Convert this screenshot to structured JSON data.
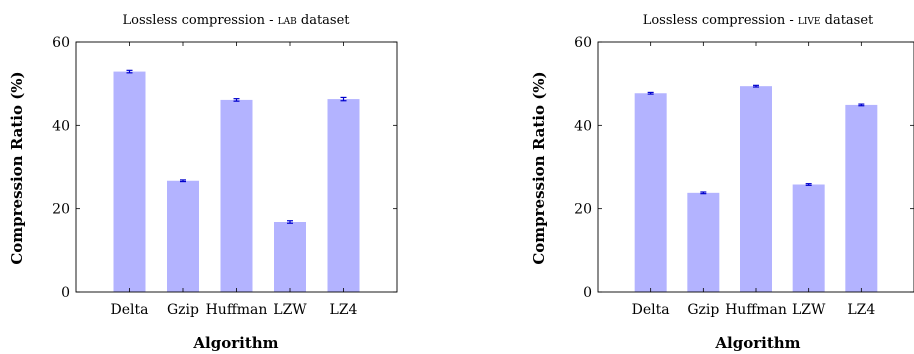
{
  "charts": [
    {
      "id": "lab",
      "title": {
        "prefix": "Lossless compression - ",
        "sc": "lab",
        "suffix": " dataset"
      },
      "xlabel": "Algorithm",
      "ylabel": "Compression Ratio (%)"
    },
    {
      "id": "live",
      "title": {
        "prefix": "Lossless compression - ",
        "sc": "live",
        "suffix": " dataset"
      },
      "xlabel": "Algorithm",
      "ylabel": "Compression Ratio (%)"
    }
  ],
  "chart_data": [
    {
      "type": "bar",
      "title": "Lossless compression - LAB dataset",
      "xlabel": "Algorithm",
      "ylabel": "Compression Ratio (%)",
      "categories": [
        "Delta",
        "Gzip",
        "Huffman",
        "LZW",
        "LZ4"
      ],
      "values": [
        52.9,
        26.7,
        46.1,
        16.8,
        46.3
      ],
      "errors": [
        0.3,
        0.2,
        0.3,
        0.3,
        0.4
      ],
      "ylim": [
        0,
        60
      ],
      "yticks": [
        0,
        20,
        40,
        60
      ],
      "grid": false,
      "bar_color": "#b3b3ff",
      "error_color": "#0000cc"
    },
    {
      "type": "bar",
      "title": "Lossless compression - LIVE dataset",
      "xlabel": "Algorithm",
      "ylabel": "Compression Ratio (%)",
      "categories": [
        "Delta",
        "Gzip",
        "Huffman",
        "LZW",
        "LZ4"
      ],
      "values": [
        47.7,
        23.8,
        49.4,
        25.8,
        44.9
      ],
      "errors": [
        0.2,
        0.2,
        0.2,
        0.2,
        0.2
      ],
      "ylim": [
        0,
        60
      ],
      "yticks": [
        0,
        20,
        40,
        60
      ],
      "grid": false,
      "bar_color": "#b3b3ff",
      "error_color": "#0000cc"
    }
  ]
}
